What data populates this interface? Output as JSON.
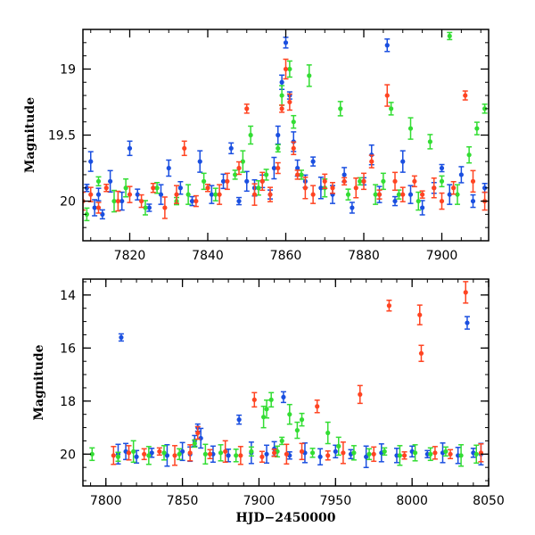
{
  "chart_data": [
    {
      "type": "scatter",
      "title": "",
      "xlabel": "",
      "ylabel": "Magnitude",
      "xlim": [
        7808,
        7912
      ],
      "ylim": [
        20.3,
        18.7
      ],
      "y_inverted": true,
      "grid": false,
      "xticks": [
        "7820",
        "7840",
        "7860",
        "7880",
        "7900"
      ],
      "yticks": [
        "19",
        "19.5",
        "20"
      ],
      "series": [
        {
          "color": "#1a4fe0",
          "points": [
            [
              7809,
              19.9
            ],
            [
              7810,
              19.7
            ],
            [
              7811,
              20.05
            ],
            [
              7812,
              19.95
            ],
            [
              7813,
              20.1
            ],
            [
              7815,
              19.85
            ],
            [
              7818,
              20.0
            ],
            [
              7820,
              19.6
            ],
            [
              7822,
              19.95
            ],
            [
              7825,
              20.05
            ],
            [
              7828,
              19.95
            ],
            [
              7830,
              19.75
            ],
            [
              7833,
              19.9
            ],
            [
              7836,
              20.0
            ],
            [
              7838,
              19.7
            ],
            [
              7841,
              19.95
            ],
            [
              7844,
              19.85
            ],
            [
              7846,
              19.6
            ],
            [
              7848,
              20.0
            ],
            [
              7850,
              19.85
            ],
            [
              7852,
              19.9
            ],
            [
              7854,
              19.85
            ],
            [
              7856,
              19.95
            ],
            [
              7857,
              19.75
            ],
            [
              7858,
              19.5
            ],
            [
              7859,
              19.1
            ],
            [
              7860,
              18.8
            ],
            [
              7861,
              19.2
            ],
            [
              7862,
              19.55
            ],
            [
              7863,
              19.75
            ],
            [
              7865,
              19.85
            ],
            [
              7867,
              19.7
            ],
            [
              7869,
              19.9
            ],
            [
              7872,
              19.95
            ],
            [
              7875,
              19.8
            ],
            [
              7877,
              20.05
            ],
            [
              7880,
              19.85
            ],
            [
              7882,
              19.65
            ],
            [
              7884,
              19.95
            ],
            [
              7886,
              18.82
            ],
            [
              7888,
              20.0
            ],
            [
              7890,
              19.7
            ],
            [
              7892,
              19.95
            ],
            [
              7895,
              20.05
            ],
            [
              7898,
              19.9
            ],
            [
              7900,
              19.75
            ],
            [
              7902,
              19.95
            ],
            [
              7905,
              19.8
            ],
            [
              7908,
              20.0
            ],
            [
              7911,
              19.9
            ]
          ]
        },
        {
          "color": "#33dd33",
          "points": [
            [
              7809,
              20.1
            ],
            [
              7812,
              19.85
            ],
            [
              7816,
              20.0
            ],
            [
              7819,
              19.9
            ],
            [
              7824,
              20.05
            ],
            [
              7827,
              19.9
            ],
            [
              7832,
              20.0
            ],
            [
              7835,
              19.95
            ],
            [
              7839,
              19.85
            ],
            [
              7842,
              19.95
            ],
            [
              7847,
              19.8
            ],
            [
              7849,
              19.7
            ],
            [
              7851,
              19.5
            ],
            [
              7853,
              19.9
            ],
            [
              7855,
              19.8
            ],
            [
              7858,
              19.6
            ],
            [
              7859,
              19.2
            ],
            [
              7861,
              19.0
            ],
            [
              7862,
              19.4
            ],
            [
              7864,
              19.8
            ],
            [
              7866,
              19.05
            ],
            [
              7870,
              19.9
            ],
            [
              7874,
              19.3
            ],
            [
              7876,
              19.95
            ],
            [
              7879,
              19.85
            ],
            [
              7883,
              19.95
            ],
            [
              7885,
              19.85
            ],
            [
              7887,
              19.3
            ],
            [
              7889,
              19.95
            ],
            [
              7892,
              19.45
            ],
            [
              7894,
              20.0
            ],
            [
              7897,
              19.55
            ],
            [
              7900,
              19.85
            ],
            [
              7902,
              18.75
            ],
            [
              7904,
              19.95
            ],
            [
              7907,
              19.65
            ],
            [
              7909,
              19.45
            ],
            [
              7911,
              19.3
            ]
          ]
        },
        {
          "color": "#ff4422",
          "points": [
            [
              7808,
              20.0
            ],
            [
              7810,
              19.95
            ],
            [
              7812,
              20.05
            ],
            [
              7814,
              19.9
            ],
            [
              7817,
              20.0
            ],
            [
              7820,
              19.95
            ],
            [
              7823,
              20.0
            ],
            [
              7826,
              19.9
            ],
            [
              7829,
              20.05
            ],
            [
              7832,
              19.95
            ],
            [
              7834,
              19.6
            ],
            [
              7837,
              20.0
            ],
            [
              7840,
              19.9
            ],
            [
              7843,
              19.95
            ],
            [
              7845,
              19.85
            ],
            [
              7848,
              19.75
            ],
            [
              7850,
              19.3
            ],
            [
              7852,
              19.95
            ],
            [
              7854,
              19.85
            ],
            [
              7856,
              19.95
            ],
            [
              7858,
              19.75
            ],
            [
              7859,
              19.3
            ],
            [
              7860,
              19.0
            ],
            [
              7861,
              19.25
            ],
            [
              7862,
              19.6
            ],
            [
              7863,
              19.8
            ],
            [
              7865,
              19.9
            ],
            [
              7867,
              19.95
            ],
            [
              7870,
              19.85
            ],
            [
              7872,
              19.9
            ],
            [
              7875,
              19.85
            ],
            [
              7878,
              19.9
            ],
            [
              7880,
              19.85
            ],
            [
              7882,
              19.7
            ],
            [
              7884,
              19.95
            ],
            [
              7886,
              19.2
            ],
            [
              7888,
              19.85
            ],
            [
              7890,
              19.95
            ],
            [
              7893,
              19.85
            ],
            [
              7895,
              19.95
            ],
            [
              7898,
              19.9
            ],
            [
              7900,
              20.0
            ],
            [
              7903,
              19.9
            ],
            [
              7906,
              19.2
            ],
            [
              7908,
              19.85
            ],
            [
              7911,
              20.0
            ]
          ]
        }
      ]
    },
    {
      "type": "scatter",
      "title": "",
      "xlabel": "HJD−2450000",
      "ylabel": "Magnitude",
      "xlim": [
        7785,
        8050
      ],
      "ylim": [
        21.2,
        13.4
      ],
      "y_inverted": true,
      "grid": false,
      "xticks": [
        "7800",
        "7850",
        "7900",
        "7950",
        "8000",
        "8050"
      ],
      "yticks": [
        "14",
        "16",
        "18",
        "20"
      ],
      "series": [
        {
          "color": "#1a4fe0",
          "points": [
            [
              7810,
              15.6
            ],
            [
              7808,
              20.0
            ],
            [
              7813,
              19.9
            ],
            [
              7820,
              20.1
            ],
            [
              7830,
              19.95
            ],
            [
              7840,
              20.05
            ],
            [
              7850,
              19.9
            ],
            [
              7855,
              20.0
            ],
            [
              7858,
              19.5
            ],
            [
              7860,
              19.0
            ],
            [
              7862,
              19.4
            ],
            [
              7870,
              20.0
            ],
            [
              7880,
              20.05
            ],
            [
              7887,
              18.7
            ],
            [
              7895,
              19.95
            ],
            [
              7905,
              20.0
            ],
            [
              7910,
              19.8
            ],
            [
              7916,
              17.85
            ],
            [
              7920,
              20.05
            ],
            [
              7930,
              19.95
            ],
            [
              7940,
              20.1
            ],
            [
              7950,
              19.9
            ],
            [
              7960,
              20.0
            ],
            [
              7970,
              20.1
            ],
            [
              7980,
              19.95
            ],
            [
              7990,
              20.05
            ],
            [
              8000,
              19.9
            ],
            [
              8010,
              20.0
            ],
            [
              8020,
              19.95
            ],
            [
              8030,
              20.05
            ],
            [
              8036,
              15.05
            ],
            [
              8040,
              19.95
            ],
            [
              8045,
              20.0
            ]
          ]
        },
        {
          "color": "#33dd33",
          "points": [
            [
              7791,
              20.0
            ],
            [
              7808,
              20.1
            ],
            [
              7818,
              19.9
            ],
            [
              7828,
              20.05
            ],
            [
              7838,
              19.95
            ],
            [
              7848,
              20.0
            ],
            [
              7858,
              19.6
            ],
            [
              7865,
              20.0
            ],
            [
              7875,
              19.95
            ],
            [
              7885,
              20.05
            ],
            [
              7895,
              19.9
            ],
            [
              7903,
              18.6
            ],
            [
              7905,
              18.3
            ],
            [
              7908,
              17.95
            ],
            [
              7912,
              19.9
            ],
            [
              7915,
              19.5
            ],
            [
              7920,
              18.5
            ],
            [
              7925,
              19.1
            ],
            [
              7928,
              18.7
            ],
            [
              7935,
              19.95
            ],
            [
              7945,
              19.2
            ],
            [
              7952,
              19.7
            ],
            [
              7962,
              19.95
            ],
            [
              7972,
              20.0
            ],
            [
              7982,
              19.9
            ],
            [
              7992,
              20.05
            ],
            [
              8002,
              19.95
            ],
            [
              8012,
              20.0
            ],
            [
              8022,
              19.9
            ],
            [
              8032,
              20.05
            ],
            [
              8042,
              20.0
            ]
          ]
        },
        {
          "color": "#ff4422",
          "points": [
            [
              7805,
              20.05
            ],
            [
              7815,
              19.95
            ],
            [
              7825,
              20.0
            ],
            [
              7835,
              19.9
            ],
            [
              7845,
              20.05
            ],
            [
              7855,
              19.95
            ],
            [
              7860,
              19.2
            ],
            [
              7868,
              20.0
            ],
            [
              7878,
              19.9
            ],
            [
              7888,
              20.05
            ],
            [
              7897,
              17.95
            ],
            [
              7902,
              20.1
            ],
            [
              7910,
              19.95
            ],
            [
              7918,
              20.0
            ],
            [
              7928,
              19.9
            ],
            [
              7938,
              18.2
            ],
            [
              7945,
              20.05
            ],
            [
              7955,
              19.95
            ],
            [
              7966,
              17.75
            ],
            [
              7975,
              20.0
            ],
            [
              7985,
              14.4
            ],
            [
              7995,
              20.05
            ],
            [
              8005,
              14.75
            ],
            [
              8006,
              16.2
            ],
            [
              8015,
              19.95
            ],
            [
              8025,
              20.0
            ],
            [
              8035,
              13.9
            ],
            [
              8045,
              19.95
            ]
          ]
        }
      ]
    }
  ]
}
